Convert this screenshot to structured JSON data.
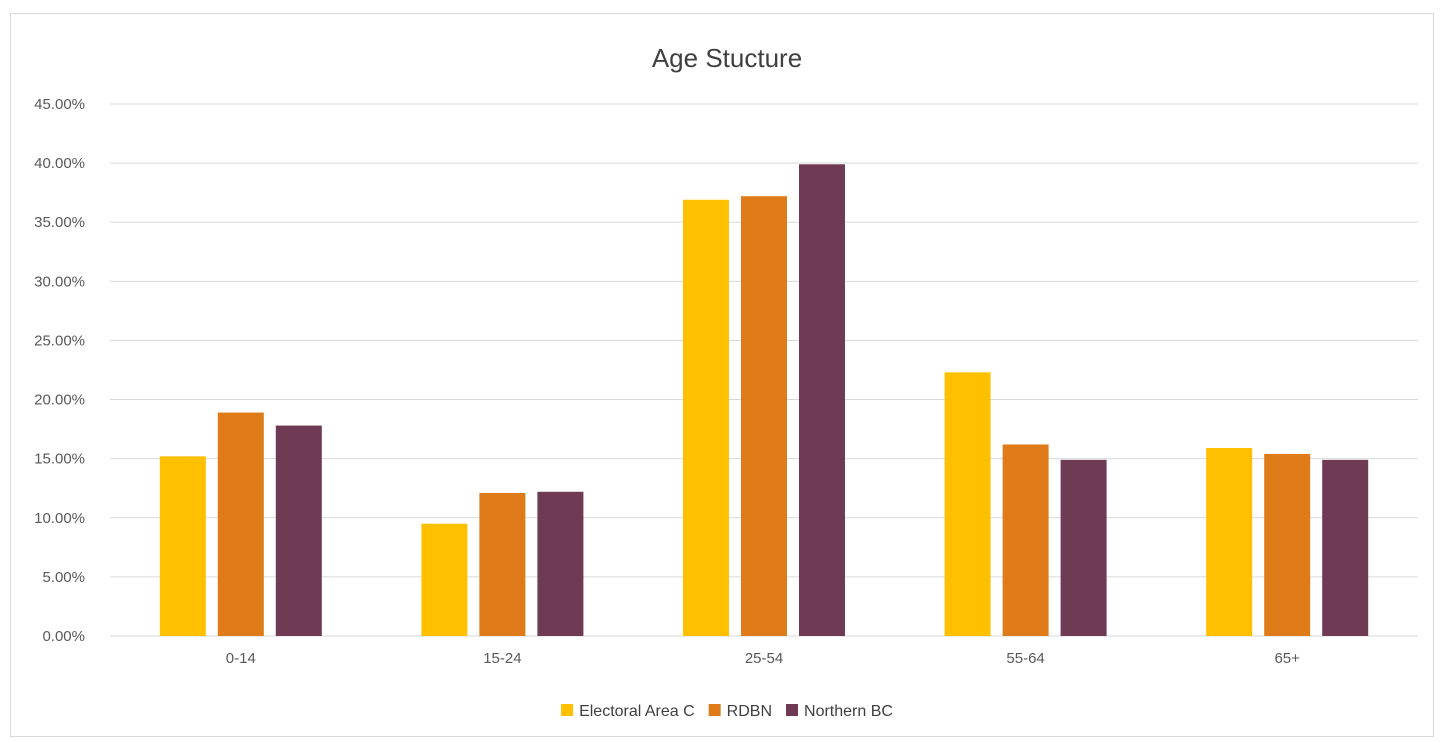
{
  "chart_data": {
    "type": "bar",
    "title": "Age Stucture",
    "xlabel": "",
    "ylabel": "",
    "categories": [
      "0-14",
      "15-24",
      "25-54",
      "55-64",
      "65+"
    ],
    "series": [
      {
        "name": "Electoral Area C",
        "color": "#ffc000",
        "values": [
          15.2,
          9.5,
          36.9,
          22.3,
          15.9
        ]
      },
      {
        "name": "RDBN",
        "color": "#e07b1a",
        "values": [
          18.9,
          12.1,
          37.2,
          16.2,
          15.4
        ]
      },
      {
        "name": "Northern BC",
        "color": "#6e3a54",
        "values": [
          17.8,
          12.2,
          39.9,
          14.9,
          14.9
        ]
      }
    ],
    "ylim": [
      0,
      45
    ],
    "yticks": [
      {
        "value": 0,
        "label": "0.00%"
      },
      {
        "value": 5,
        "label": "5.00%"
      },
      {
        "value": 10,
        "label": "10.00%"
      },
      {
        "value": 15,
        "label": "15.00%"
      },
      {
        "value": 20,
        "label": "20.00%"
      },
      {
        "value": 25,
        "label": "25.00%"
      },
      {
        "value": 30,
        "label": "30.00%"
      },
      {
        "value": 35,
        "label": "35.00%"
      },
      {
        "value": 40,
        "label": "40.00%"
      },
      {
        "value": 45,
        "label": "45.00%"
      }
    ],
    "grid": true,
    "legend_position": "bottom"
  }
}
